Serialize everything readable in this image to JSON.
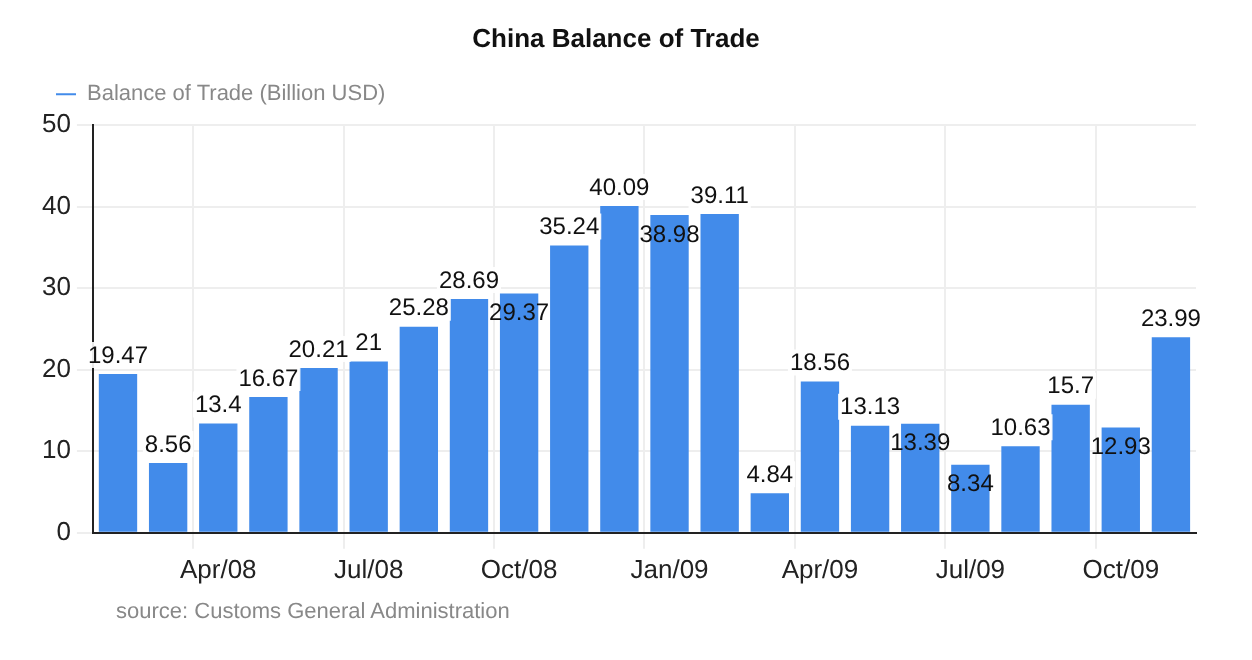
{
  "chart_data": {
    "type": "bar",
    "title": "China Balance of Trade",
    "categories": [
      null,
      null,
      "Apr/08",
      null,
      null,
      "Jul/08",
      null,
      null,
      "Oct/08",
      null,
      null,
      "Jan/09",
      null,
      null,
      "Apr/09",
      null,
      null,
      "Jul/09",
      null,
      null,
      "Oct/09",
      null
    ],
    "series": [
      {
        "name": "Balance of Trade (Billion USD)",
        "color": "#428bea",
        "values": [
          19.47,
          8.56,
          13.4,
          16.67,
          20.21,
          21,
          25.28,
          28.69,
          29.37,
          35.24,
          40.09,
          38.98,
          39.11,
          4.84,
          18.56,
          13.13,
          13.39,
          8.34,
          10.63,
          15.7,
          12.93,
          23.99
        ]
      }
    ],
    "ylim": [
      0,
      50
    ],
    "yticks": [
      0,
      10,
      20,
      30,
      40,
      50
    ],
    "grid": true,
    "legend": "top left",
    "data_labels": true,
    "annotations": [
      "source: Customs General Administration"
    ]
  }
}
